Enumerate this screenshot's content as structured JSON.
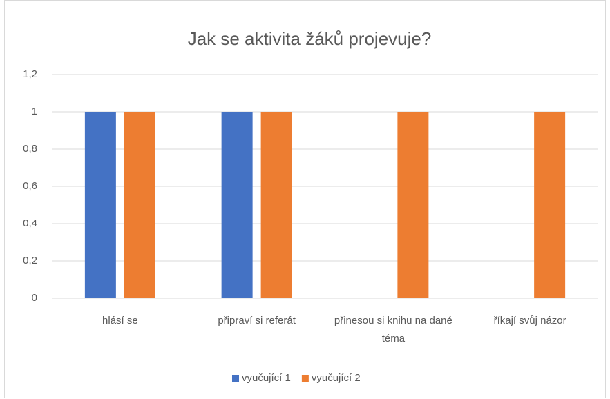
{
  "chart_data": {
    "type": "bar",
    "title": "Jak se aktivita žáků projevuje?",
    "categories": [
      "hlásí se",
      "připraví si referát",
      "přinesou si knihu na dané téma",
      "říkají svůj názor"
    ],
    "series": [
      {
        "name": "vyučující 1",
        "color": "#4472c4",
        "values": [
          1,
          1,
          0,
          0
        ]
      },
      {
        "name": "vyučující 2",
        "color": "#ed7d31",
        "values": [
          1,
          1,
          1,
          1
        ]
      }
    ],
    "ylim": [
      0,
      1.2
    ],
    "yticks": [
      0,
      {
        "value": 0.2,
        "label": "0,2"
      },
      {
        "value": 0.4,
        "label": "0,4"
      },
      {
        "value": 0.6,
        "label": "0,6"
      },
      {
        "value": 0.8,
        "label": "0,8"
      },
      1,
      {
        "value": 1.2,
        "label": "1,2"
      }
    ],
    "grid": true,
    "legend": "bottom"
  }
}
